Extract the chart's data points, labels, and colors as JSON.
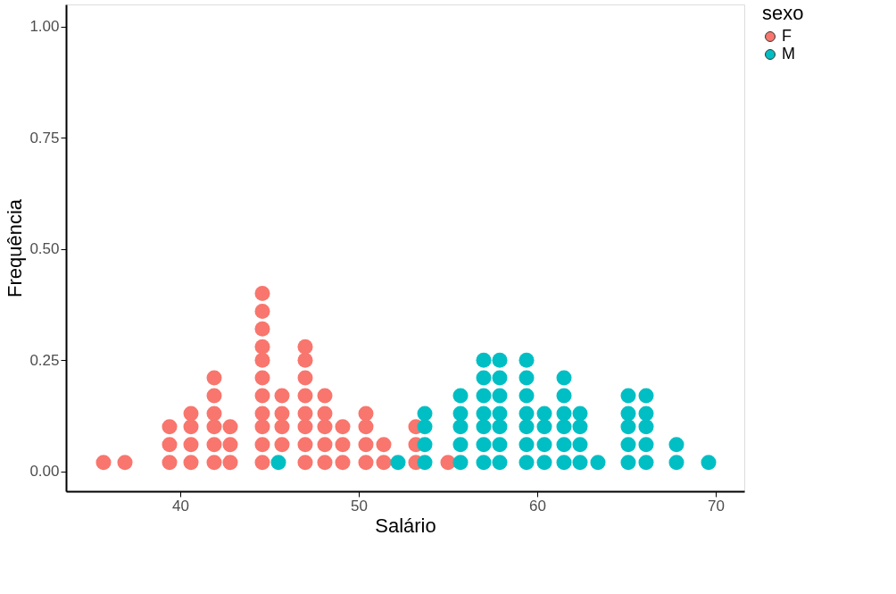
{
  "chart_data": {
    "type": "scatter",
    "xlabel": "Salário",
    "ylabel": "Frequência",
    "legend_title": "sexo",
    "legend": "right",
    "grid": false,
    "marker": "circle",
    "xlim": [
      33.6,
      71.6
    ],
    "xticks": [
      40,
      50,
      60,
      70
    ],
    "ylim": [
      -0.045,
      1.05
    ],
    "yticks": [
      {
        "value": 0,
        "label": "0.00"
      },
      {
        "value": 0.25,
        "label": "0.25"
      },
      {
        "value": 0.5,
        "label": "0.50"
      },
      {
        "value": 0.75,
        "label": "0.75"
      },
      {
        "value": 1,
        "label": "1.00"
      }
    ],
    "series": [
      {
        "name": "F",
        "color": "#f8766d",
        "x": [
          35.7,
          36.9,
          39.4,
          39.4,
          39.4,
          40.6,
          40.6,
          40.6,
          40.6,
          41.9,
          41.9,
          41.9,
          41.9,
          41.9,
          41.9,
          42.8,
          42.8,
          42.8,
          44.6,
          44.6,
          44.6,
          44.6,
          44.6,
          44.6,
          44.6,
          44.6,
          44.6,
          44.6,
          44.6,
          45.7,
          45.7,
          45.7,
          45.7,
          47.0,
          47.0,
          47.0,
          47.0,
          47.0,
          47.0,
          47.0,
          47.0,
          48.1,
          48.1,
          48.1,
          48.1,
          48.1,
          49.1,
          49.1,
          49.1,
          50.4,
          50.4,
          50.4,
          50.4,
          51.4,
          51.4,
          53.2,
          53.2,
          53.2,
          55.0
        ],
        "values": [
          0.02,
          0.02,
          0.02,
          0.06,
          0.1,
          0.02,
          0.06,
          0.1,
          0.13,
          0.02,
          0.06,
          0.1,
          0.13,
          0.17,
          0.21,
          0.02,
          0.06,
          0.1,
          0.02,
          0.06,
          0.1,
          0.13,
          0.17,
          0.21,
          0.25,
          0.28,
          0.32,
          0.36,
          0.4,
          0.06,
          0.1,
          0.13,
          0.17,
          0.02,
          0.06,
          0.1,
          0.13,
          0.17,
          0.21,
          0.25,
          0.28,
          0.02,
          0.06,
          0.1,
          0.13,
          0.17,
          0.02,
          0.06,
          0.1,
          0.02,
          0.06,
          0.1,
          0.13,
          0.02,
          0.06,
          0.02,
          0.06,
          0.1,
          0.02
        ]
      },
      {
        "name": "M",
        "color": "#00bfc4",
        "x": [
          45.5,
          52.2,
          53.7,
          53.7,
          53.7,
          53.7,
          55.7,
          55.7,
          55.7,
          55.7,
          55.7,
          57.0,
          57.0,
          57.0,
          57.0,
          57.0,
          57.0,
          57.0,
          57.9,
          57.9,
          57.9,
          57.9,
          57.9,
          57.9,
          57.9,
          59.4,
          59.4,
          59.4,
          59.4,
          59.4,
          59.4,
          59.4,
          60.4,
          60.4,
          60.4,
          60.4,
          61.5,
          61.5,
          61.5,
          61.5,
          61.5,
          61.5,
          62.4,
          62.4,
          62.4,
          62.4,
          63.4,
          65.1,
          65.1,
          65.1,
          65.1,
          65.1,
          66.1,
          66.1,
          66.1,
          66.1,
          66.1,
          67.8,
          67.8,
          69.6
        ],
        "values": [
          0.02,
          0.02,
          0.02,
          0.06,
          0.1,
          0.13,
          0.02,
          0.06,
          0.1,
          0.13,
          0.17,
          0.02,
          0.06,
          0.1,
          0.13,
          0.17,
          0.21,
          0.25,
          0.02,
          0.06,
          0.1,
          0.13,
          0.17,
          0.21,
          0.25,
          0.02,
          0.06,
          0.1,
          0.13,
          0.17,
          0.21,
          0.25,
          0.02,
          0.06,
          0.1,
          0.13,
          0.02,
          0.06,
          0.1,
          0.13,
          0.17,
          0.21,
          0.02,
          0.06,
          0.1,
          0.13,
          0.02,
          0.02,
          0.06,
          0.1,
          0.13,
          0.17,
          0.02,
          0.06,
          0.1,
          0.13,
          0.17,
          0.02,
          0.06,
          0.02
        ]
      }
    ]
  }
}
